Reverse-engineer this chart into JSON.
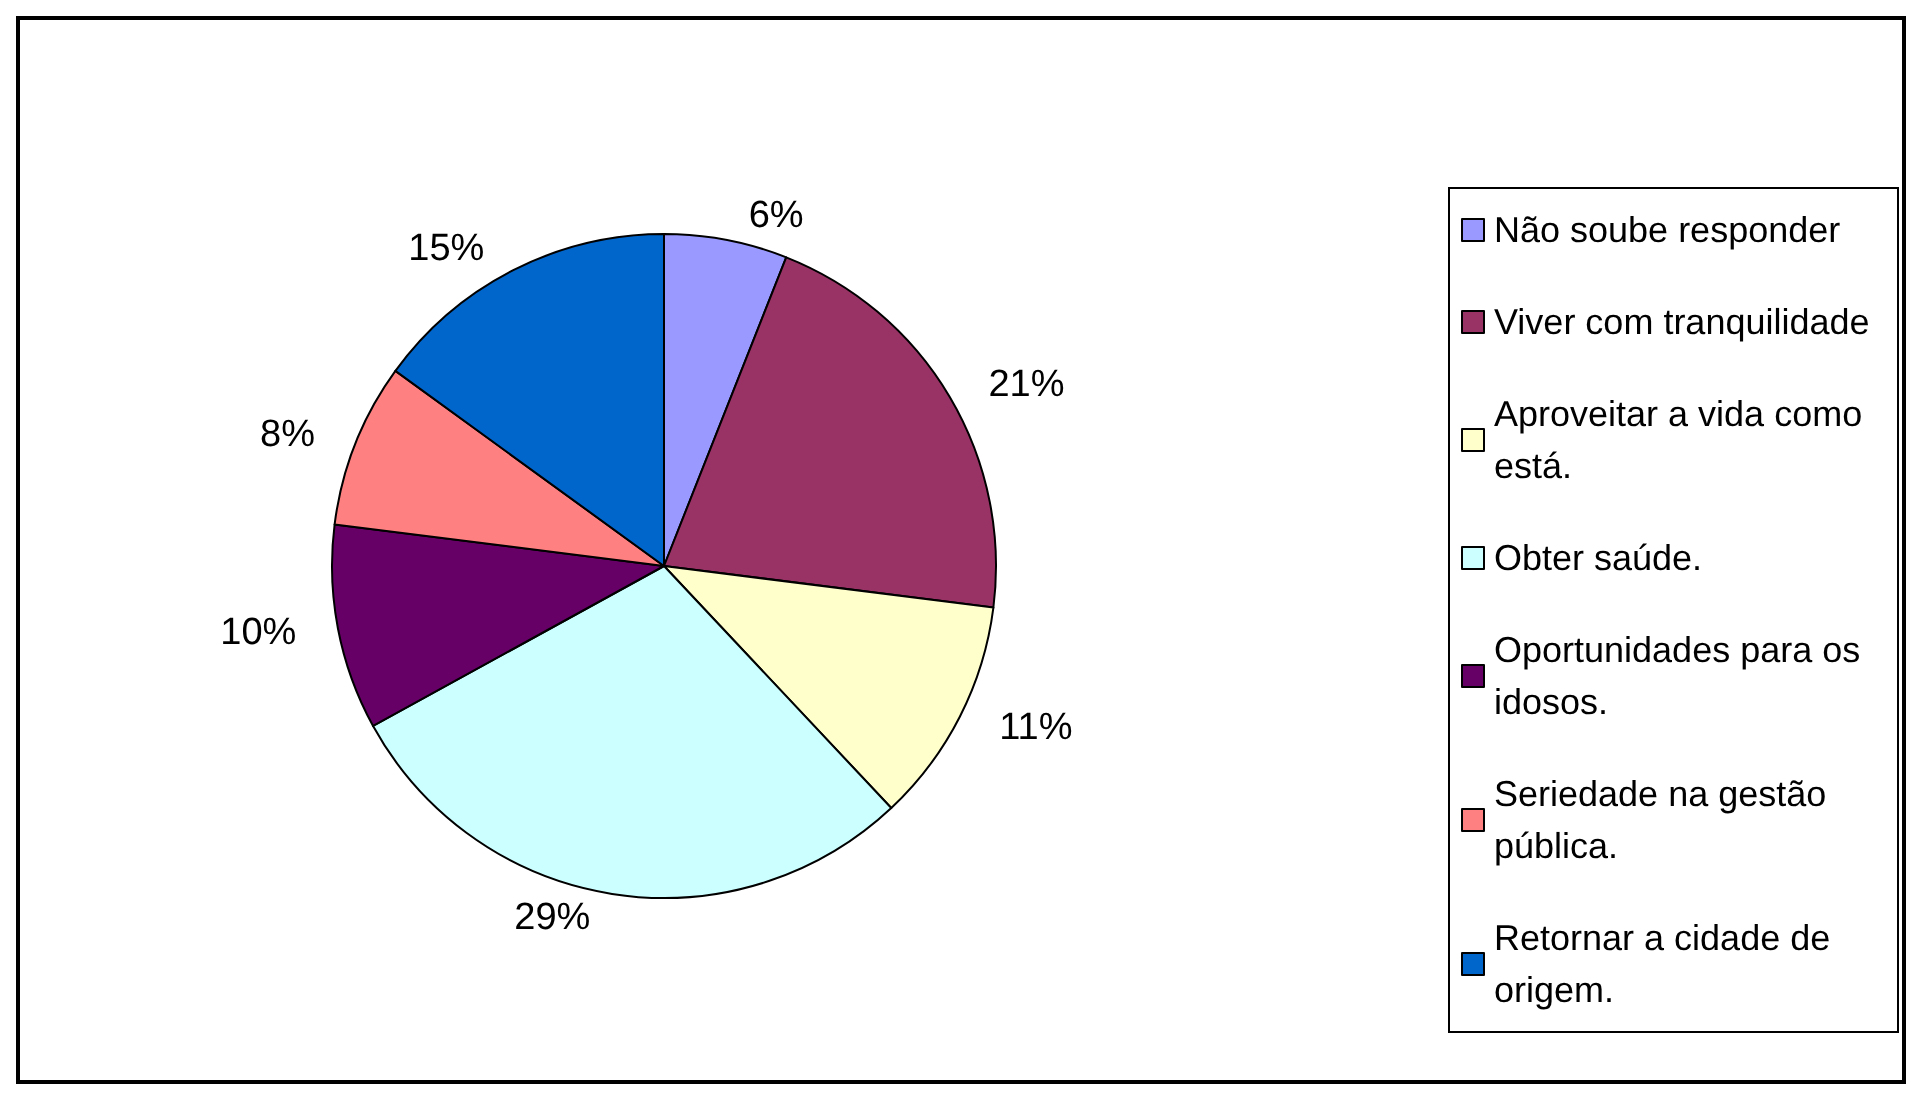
{
  "chart_data": {
    "type": "pie",
    "categories": [
      "Não soube responder",
      "Viver com tranquilidade",
      "Aproveitar a vida como está.",
      "Obter saúde.",
      "Oportunidades para os idosos.",
      "Seriedade na gestão pública.",
      "Retornar a cidade de origem."
    ],
    "values": [
      6,
      21,
      11,
      29,
      10,
      8,
      15
    ],
    "colors": [
      "#9999ff",
      "#993366",
      "#ffffcc",
      "#ccffff",
      "#660066",
      "#ff8080",
      "#0066cc"
    ],
    "value_labels": [
      "6%",
      "21%",
      "11%",
      "29%",
      "10%",
      "8%",
      "15%"
    ],
    "legend": "right"
  }
}
